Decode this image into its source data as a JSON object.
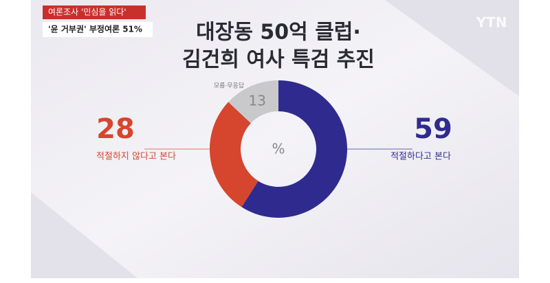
{
  "chart_data": {
    "type": "donut",
    "title": [
      "대장동 50억 클럽·",
      "김건희 여사 특검 추진"
    ],
    "badges": [
      "여론조사 '민심을 읽다'",
      "'윤 거부권' 부정여론 51%"
    ],
    "logo": "YTN",
    "center_label": "%",
    "categories": [
      "적절하다고 본다",
      "적절하지 않다고 본다",
      "모름·무응답"
    ],
    "values": [
      59,
      28,
      13
    ],
    "colors": [
      "#2f2b8e",
      "#d6452e",
      "#c9c9cb"
    ]
  }
}
